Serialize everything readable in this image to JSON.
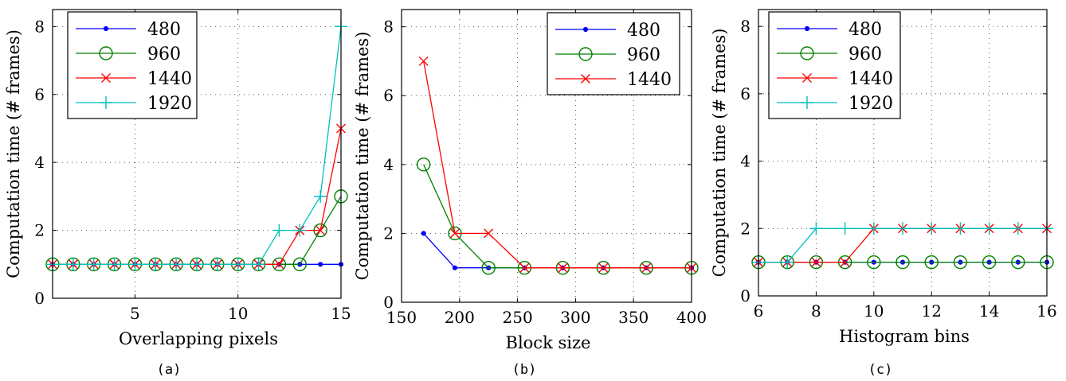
{
  "chart_data": [
    {
      "type": "line",
      "caption": "(a)",
      "xlabel": "Overlapping pixels",
      "ylabel": "Computation time (# frames)",
      "xlim": [
        1,
        15
      ],
      "ylim": [
        0,
        8.5
      ],
      "xticks": [
        5,
        10,
        15
      ],
      "yticks": [
        0,
        2,
        4,
        6,
        8
      ],
      "grid": true,
      "legend_position": "top-left",
      "series": [
        {
          "name": "480",
          "color": "#0000ff",
          "marker": "dot",
          "x": [
            1,
            2,
            3,
            4,
            5,
            6,
            7,
            8,
            9,
            10,
            11,
            12,
            13,
            14,
            15
          ],
          "y": [
            1,
            1,
            1,
            1,
            1,
            1,
            1,
            1,
            1,
            1,
            1,
            1,
            1,
            1,
            1
          ]
        },
        {
          "name": "960",
          "color": "#008000",
          "marker": "circle",
          "x": [
            1,
            2,
            3,
            4,
            5,
            6,
            7,
            8,
            9,
            10,
            11,
            12,
            13,
            14,
            15
          ],
          "y": [
            1,
            1,
            1,
            1,
            1,
            1,
            1,
            1,
            1,
            1,
            1,
            1,
            1,
            2,
            3
          ]
        },
        {
          "name": "1440",
          "color": "#ff0000",
          "marker": "x",
          "x": [
            1,
            2,
            3,
            4,
            5,
            6,
            7,
            8,
            9,
            10,
            11,
            12,
            13,
            14,
            15
          ],
          "y": [
            1,
            1,
            1,
            1,
            1,
            1,
            1,
            1,
            1,
            1,
            1,
            1,
            2,
            2,
            5
          ]
        },
        {
          "name": "1920",
          "color": "#00bfbf",
          "marker": "plus",
          "x": [
            1,
            2,
            3,
            4,
            5,
            6,
            7,
            8,
            9,
            10,
            11,
            12,
            13,
            14,
            15
          ],
          "y": [
            1,
            1,
            1,
            1,
            1,
            1,
            1,
            1,
            1,
            1,
            1,
            2,
            2,
            3,
            8
          ]
        }
      ]
    },
    {
      "type": "line",
      "caption": "(b)",
      "xlabel": "Block size",
      "ylabel": "Computation time (# frames)",
      "xlim": [
        150,
        400
      ],
      "ylim": [
        0,
        8.5
      ],
      "xticks": [
        150,
        200,
        250,
        300,
        350,
        400
      ],
      "yticks": [
        0,
        2,
        4,
        6,
        8
      ],
      "grid": true,
      "legend_position": "top-right",
      "series": [
        {
          "name": "480",
          "color": "#0000ff",
          "marker": "dot",
          "x": [
            169,
            196,
            225,
            256,
            289,
            324,
            361,
            400
          ],
          "y": [
            2,
            1,
            1,
            1,
            1,
            1,
            1,
            1
          ]
        },
        {
          "name": "960",
          "color": "#008000",
          "marker": "circle",
          "x": [
            169,
            196,
            225,
            256,
            289,
            324,
            361,
            400
          ],
          "y": [
            4,
            2,
            1,
            1,
            1,
            1,
            1,
            1
          ]
        },
        {
          "name": "1440",
          "color": "#ff0000",
          "marker": "x",
          "x": [
            169,
            196,
            225,
            256,
            289,
            324,
            361,
            400
          ],
          "y": [
            7,
            2,
            2,
            1,
            1,
            1,
            1,
            1
          ]
        }
      ]
    },
    {
      "type": "line",
      "caption": "(c)",
      "xlabel": "Histogram bins",
      "ylabel": "Computation time (# frames)",
      "xlim": [
        6,
        16
      ],
      "ylim": [
        0,
        8.5
      ],
      "xticks": [
        6,
        8,
        10,
        12,
        14,
        16
      ],
      "yticks": [
        0,
        2,
        4,
        6,
        8
      ],
      "grid": true,
      "legend_position": "top-left",
      "series": [
        {
          "name": "480",
          "color": "#0000ff",
          "marker": "dot",
          "x": [
            6,
            7,
            8,
            9,
            10,
            11,
            12,
            13,
            14,
            15,
            16
          ],
          "y": [
            1,
            1,
            1,
            1,
            1,
            1,
            1,
            1,
            1,
            1,
            1
          ]
        },
        {
          "name": "960",
          "color": "#008000",
          "marker": "circle",
          "x": [
            6,
            7,
            8,
            9,
            10,
            11,
            12,
            13,
            14,
            15,
            16
          ],
          "y": [
            1,
            1,
            1,
            1,
            1,
            1,
            1,
            1,
            1,
            1,
            1
          ]
        },
        {
          "name": "1440",
          "color": "#ff0000",
          "marker": "x",
          "x": [
            6,
            7,
            8,
            9,
            10,
            11,
            12,
            13,
            14,
            15,
            16
          ],
          "y": [
            1,
            1,
            1,
            1,
            2,
            2,
            2,
            2,
            2,
            2,
            2
          ]
        },
        {
          "name": "1920",
          "color": "#00bfbf",
          "marker": "plus",
          "x": [
            6,
            7,
            8,
            9,
            10,
            11,
            12,
            13,
            14,
            15,
            16
          ],
          "y": [
            1,
            1,
            2,
            2,
            2,
            2,
            2,
            2,
            2,
            2,
            2
          ]
        }
      ]
    }
  ]
}
